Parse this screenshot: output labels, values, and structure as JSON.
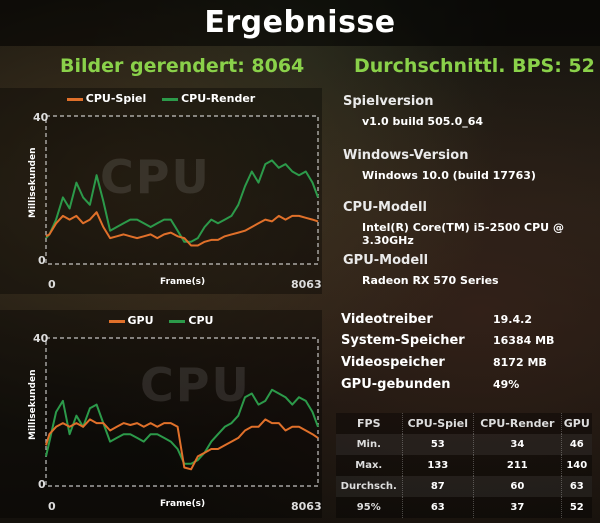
{
  "header": {
    "title": "Ergebnisse"
  },
  "summary": {
    "frames_rendered": "Bilder gerendert: 8064",
    "avg_fps": "Durchschnittl. BPS: 52"
  },
  "system": {
    "game_version_label": "Spielversion",
    "game_version": "v1.0 build 505.0_64",
    "windows_label": "Windows-Version",
    "windows_version": "Windows 10.0 (build 17763)",
    "cpu_label": "CPU-Modell",
    "cpu_model": "Intel(R) Core(TM) i5-2500 CPU @ 3.30GHz",
    "gpu_label": "GPU-Modell",
    "gpu_model": "Radeon RX 570 Series",
    "driver_label": "Videotreiber",
    "driver_value": "19.4.2",
    "sysmem_label": "System-Speicher",
    "sysmem_value": "16384 MB",
    "vram_label": "Videospeicher",
    "vram_value": "8172 MB",
    "gpubound_label": "GPU-gebunden",
    "gpubound_value": "49%"
  },
  "fps_table": {
    "headers": [
      "FPS",
      "CPU-Spiel",
      "CPU-Render",
      "GPU"
    ],
    "rows": [
      [
        "Min.",
        "53",
        "34",
        "46"
      ],
      [
        "Max.",
        "133",
        "211",
        "140"
      ],
      [
        "Durchsch.",
        "87",
        "60",
        "63"
      ],
      [
        "95%",
        "63",
        "37",
        "52"
      ]
    ]
  },
  "colors": {
    "orange": "#e0702a",
    "green": "#2c9a4a",
    "headline": "#8ad14a"
  },
  "chart_data": [
    {
      "type": "line",
      "watermark": "CPU",
      "ylabel": "Millisekunden",
      "xlabel": "Frame(s)",
      "yticks": [
        "40",
        "0"
      ],
      "xticks": [
        "0",
        "8063"
      ],
      "ylim": [
        0,
        40
      ],
      "xlim": [
        0,
        8063
      ],
      "legend": "top-center",
      "series": [
        {
          "name": "CPU-Spiel",
          "color": "#e0702a",
          "x": [
            0,
            100,
            300,
            500,
            700,
            900,
            1100,
            1300,
            1500,
            1700,
            1900,
            2100,
            2300,
            2500,
            2700,
            2900,
            3100,
            3300,
            3500,
            3700,
            3900,
            4100,
            4300,
            4500,
            4700,
            4900,
            5100,
            5300,
            5500,
            5700,
            5900,
            6100,
            6300,
            6500,
            6700,
            6900,
            7100,
            7300,
            7500,
            7700,
            7900,
            8063
          ],
          "values": [
            7.5,
            8,
            11,
            13,
            12,
            13,
            11,
            12,
            14,
            10,
            7,
            7.5,
            8,
            7.5,
            7,
            7.5,
            8,
            7,
            8,
            8.5,
            7.5,
            7,
            5,
            5,
            6,
            6.5,
            6.5,
            7.5,
            8,
            8.5,
            9,
            10,
            11,
            12,
            11.5,
            13,
            12,
            13,
            13,
            12.5,
            12,
            11.5
          ]
        },
        {
          "name": "CPU-Render",
          "color": "#2c9a4a",
          "x": [
            0,
            100,
            300,
            500,
            700,
            900,
            1100,
            1300,
            1500,
            1700,
            1900,
            2100,
            2300,
            2500,
            2700,
            2900,
            3100,
            3300,
            3500,
            3700,
            3900,
            4100,
            4300,
            4500,
            4700,
            4900,
            5100,
            5300,
            5500,
            5700,
            5900,
            6100,
            6300,
            6500,
            6700,
            6900,
            7100,
            7300,
            7500,
            7700,
            7900,
            8063
          ],
          "values": [
            7,
            8,
            12,
            18,
            15,
            22,
            18,
            16,
            24,
            17,
            9,
            10,
            11,
            12,
            12,
            11,
            10,
            11,
            12,
            12,
            9,
            6,
            6,
            7,
            10,
            12,
            11,
            12,
            13,
            16,
            21,
            25,
            22,
            27,
            28,
            26,
            27,
            25,
            24,
            25,
            22,
            18
          ]
        }
      ]
    },
    {
      "type": "line",
      "watermark": "CPU",
      "ylabel": "Millisekunden",
      "xlabel": "Frame(s)",
      "yticks": [
        "40",
        "0"
      ],
      "xticks": [
        "0",
        "8063"
      ],
      "ylim": [
        0,
        40
      ],
      "xlim": [
        0,
        8063
      ],
      "legend": "top-center",
      "series": [
        {
          "name": "GPU",
          "color": "#e0702a",
          "x": [
            0,
            100,
            300,
            500,
            700,
            900,
            1100,
            1300,
            1500,
            1700,
            1900,
            2100,
            2300,
            2500,
            2700,
            2900,
            3100,
            3300,
            3500,
            3700,
            3900,
            4100,
            4300,
            4500,
            4700,
            4900,
            5100,
            5300,
            5500,
            5700,
            5900,
            6100,
            6300,
            6500,
            6700,
            6900,
            7100,
            7300,
            7500,
            7700,
            7900,
            8063
          ],
          "values": [
            11,
            14,
            16,
            17,
            16,
            17,
            16,
            18,
            17,
            17,
            15,
            16,
            17,
            16.5,
            17,
            16,
            17,
            16,
            17,
            17,
            16,
            5,
            4.5,
            8,
            9,
            10,
            10,
            11,
            12,
            13,
            15,
            16,
            16,
            18,
            17,
            17,
            15,
            16,
            16,
            15,
            14,
            13
          ]
        },
        {
          "name": "CPU",
          "color": "#2c9a4a",
          "x": [
            0,
            100,
            300,
            500,
            700,
            900,
            1100,
            1300,
            1500,
            1700,
            1900,
            2100,
            2300,
            2500,
            2700,
            2900,
            3100,
            3300,
            3500,
            3700,
            3900,
            4100,
            4300,
            4500,
            4700,
            4900,
            5100,
            5300,
            5500,
            5700,
            5900,
            6100,
            6300,
            6500,
            6700,
            6900,
            7100,
            7300,
            7500,
            7700,
            7900,
            8063
          ],
          "values": [
            8,
            12,
            20,
            23,
            14,
            19,
            16,
            21,
            22,
            17,
            12,
            13,
            14,
            14,
            13,
            12,
            14,
            14,
            13,
            12,
            10,
            6,
            6,
            7,
            9,
            12,
            14,
            16,
            17,
            19,
            24,
            25,
            22,
            23,
            26,
            25,
            24,
            22,
            24,
            23,
            20,
            16
          ]
        }
      ]
    }
  ]
}
